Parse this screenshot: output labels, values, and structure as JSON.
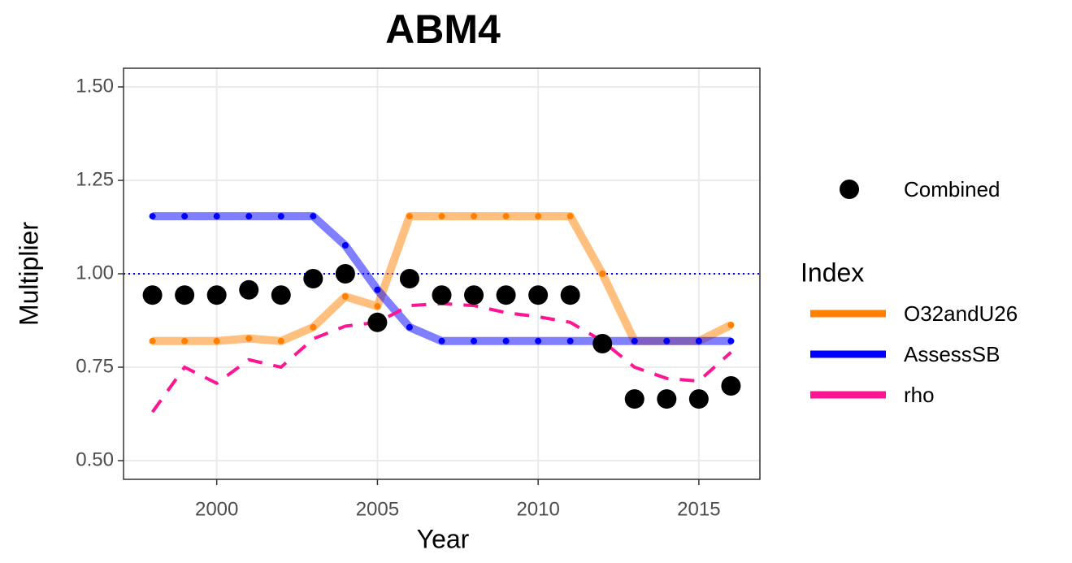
{
  "chart_data": {
    "type": "line",
    "title": "ABM4",
    "x_label": "Year",
    "y_label": "Multiplier",
    "x": [
      1998,
      1999,
      2000,
      2001,
      2002,
      2003,
      2004,
      2005,
      2006,
      2007,
      2008,
      2009,
      2010,
      2011,
      2012,
      2013,
      2014,
      2015,
      2016
    ],
    "xlim": [
      1997.1,
      2016.9
    ],
    "xticks": [
      2000,
      2005,
      2010,
      2015
    ],
    "ylim": [
      0.45,
      1.55
    ],
    "yticks": [
      {
        "value": 0.5,
        "label": "0.50"
      },
      {
        "value": 0.75,
        "label": "0.75"
      },
      {
        "value": 1,
        "label": "1.00"
      },
      {
        "value": 1.25,
        "label": "1.25"
      },
      {
        "value": 1.5,
        "label": "1.50"
      }
    ],
    "grid": true,
    "reference_line": 1,
    "reference_color": "#0000ff",
    "legend_title": "Index",
    "legend_position": "right",
    "series": [
      {
        "name": "Combined",
        "color": "#000000",
        "style": "points",
        "values": [
          0.943,
          0.943,
          0.943,
          0.957,
          0.943,
          0.987,
          1.0,
          0.87,
          0.987,
          0.943,
          0.943,
          0.943,
          0.943,
          0.943,
          0.813,
          0.665,
          0.665,
          0.665,
          0.7
        ]
      },
      {
        "name": "O32andU26",
        "color": "#ff7f00",
        "style": "line",
        "values": [
          0.82,
          0.82,
          0.82,
          0.827,
          0.82,
          0.857,
          0.939,
          0.913,
          1.154,
          1.154,
          1.154,
          1.154,
          1.154,
          1.154,
          1.0,
          0.82,
          0.82,
          0.82,
          0.863
        ]
      },
      {
        "name": "AssessSB",
        "color": "#0000ff",
        "style": "line",
        "values": [
          1.154,
          1.154,
          1.154,
          1.154,
          1.154,
          1.154,
          1.076,
          0.957,
          0.857,
          0.82,
          0.82,
          0.82,
          0.82,
          0.82,
          0.82,
          0.82,
          0.82,
          0.82,
          0.82
        ]
      },
      {
        "name": "rho",
        "color": "#ff1493",
        "style": "dashed",
        "values": [
          0.63,
          0.75,
          0.707,
          0.77,
          0.75,
          0.826,
          0.86,
          0.87,
          0.915,
          0.92,
          0.915,
          0.896,
          0.885,
          0.87,
          0.82,
          0.75,
          0.72,
          0.713,
          0.79
        ]
      }
    ]
  }
}
